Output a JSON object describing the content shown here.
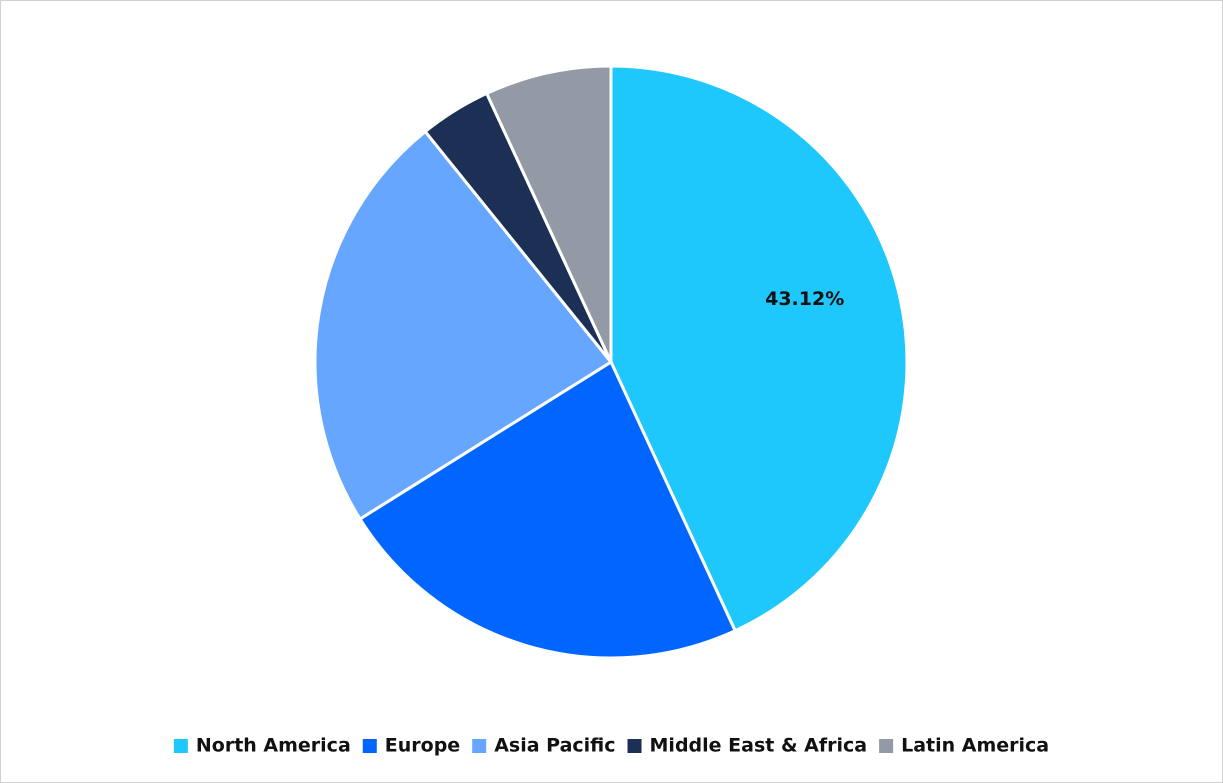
{
  "chart_data": {
    "type": "pie",
    "categories": [
      "North America",
      "Europe",
      "Asia Pacific",
      "Middle East & Africa",
      "Latin America"
    ],
    "values": [
      43.12,
      23.0,
      23.1,
      3.9,
      6.9
    ],
    "value_labels": [
      "43.12%",
      null,
      null,
      null,
      null
    ],
    "colors": [
      "#1ec8fc",
      "#0066ff",
      "#66a6ff",
      "#1c2f55",
      "#9399a5"
    ],
    "legend": "bottom"
  }
}
